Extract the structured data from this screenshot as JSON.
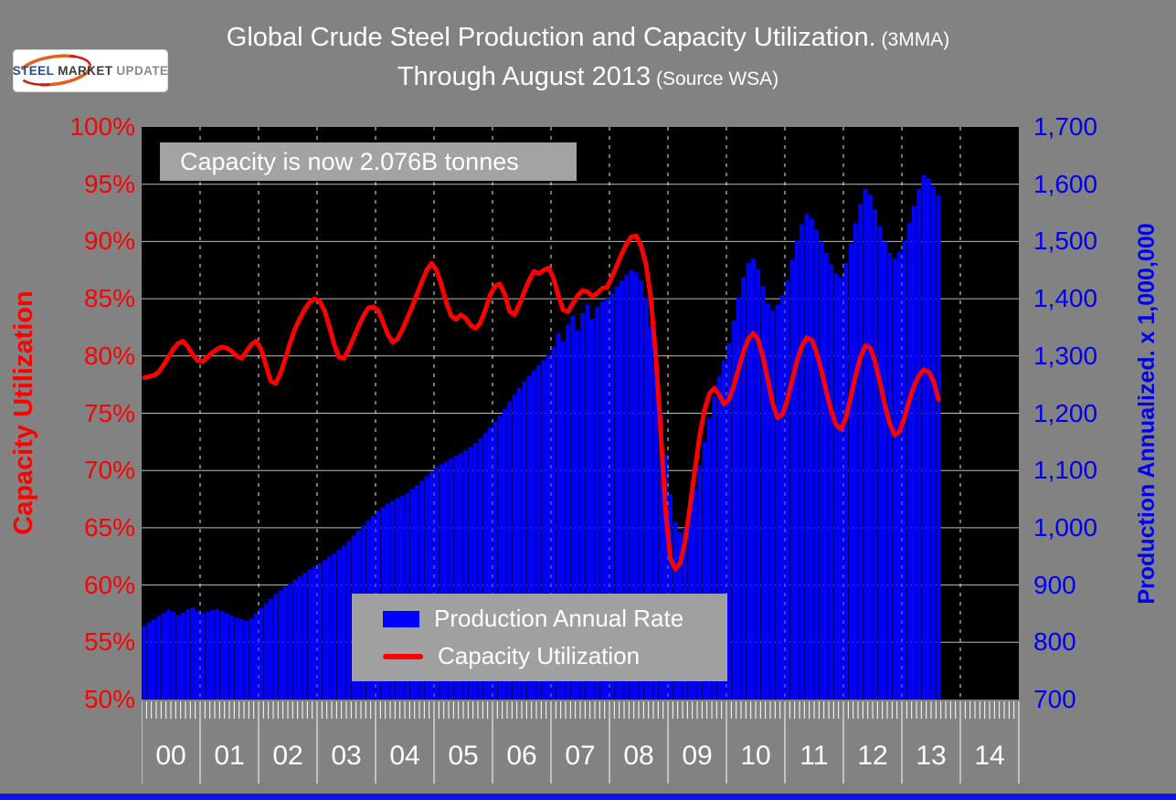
{
  "page": {
    "background": "#828282"
  },
  "logo": {
    "steel": "STEEL",
    "market": "MARKET",
    "update": "UPDATE"
  },
  "title": {
    "line1_main": "Global Crude Steel Production and Capacity Utilization.",
    "line1_small": " (3MMA)",
    "line2_main": "Through August 2013",
    "line2_small": " (Source WSA)"
  },
  "annotation": {
    "text": "Capacity is now 2.076B tonnes"
  },
  "legend": {
    "items": [
      {
        "label": "Production Annual Rate",
        "color": "#0000ff",
        "type": "bar"
      },
      {
        "label": "Capacity Utilization",
        "color": "#ff0000",
        "type": "line"
      }
    ]
  },
  "axes": {
    "left": {
      "title": "Capacity Utilization",
      "color": "#ff0000",
      "ticks": [
        "100%",
        "95%",
        "90%",
        "85%",
        "80%",
        "75%",
        "70%",
        "65%",
        "60%",
        "55%",
        "50%"
      ]
    },
    "right": {
      "title": "Production Annualized. x 1,000,000",
      "color": "#0000f0",
      "ticks": [
        "1,700",
        "1,600",
        "1,500",
        "1,400",
        "1,300",
        "1,200",
        "1,100",
        "1,000",
        "900",
        "800",
        "700"
      ]
    },
    "x": {
      "year_labels": [
        "00",
        "01",
        "02",
        "03",
        "04",
        "05",
        "06",
        "07",
        "08",
        "09",
        "10",
        "11",
        "12",
        "13",
        "14"
      ],
      "months_per_year": 12
    }
  },
  "chart_data": {
    "type": "bar+line",
    "title": "Global Crude Steel Production and Capacity Utilization. (3MMA) Through August 2013 (Source WSA)",
    "x_start": "2000-01",
    "x_end": "2013-08",
    "x_axis_years": [
      "00",
      "01",
      "02",
      "03",
      "04",
      "05",
      "06",
      "07",
      "08",
      "09",
      "10",
      "11",
      "12",
      "13",
      "14"
    ],
    "left_axis": {
      "label": "Capacity Utilization",
      "range": [
        50,
        100
      ],
      "tick_step": 5,
      "format": "percent"
    },
    "right_axis": {
      "label": "Production Annualized. x 1,000,000",
      "range": [
        700,
        1700
      ],
      "tick_step": 100
    },
    "annotation": "Capacity is now 2.076B tonnes",
    "legend_position": "inside-bottom-center",
    "grid": {
      "horizontal": true,
      "vertical_dashed_yearly": true
    },
    "plot_background": "#000000",
    "series": [
      {
        "name": "Production Annual Rate",
        "type": "bar",
        "axis": "right",
        "unit": "million tonnes (annualized)",
        "color": "#0000ff",
        "values": [
          828,
          834,
          840,
          846,
          851,
          856,
          853,
          848,
          852,
          858,
          861,
          855,
          850,
          853,
          856,
          858,
          855,
          850,
          846,
          843,
          840,
          837,
          842,
          850,
          860,
          868,
          876,
          884,
          891,
          897,
          903,
          909,
          915,
          921,
          927,
          932,
          938,
          943,
          949,
          955,
          962,
          969,
          977,
          986,
          995,
          1004,
          1013,
          1021,
          1029,
          1036,
          1042,
          1047,
          1052,
          1056,
          1061,
          1067,
          1074,
          1082,
          1090,
          1098,
          1105,
          1111,
          1116,
          1121,
          1126,
          1130,
          1135,
          1141,
          1148,
          1156,
          1165,
          1175,
          1185,
          1196,
          1208,
          1220,
          1232,
          1244,
          1255,
          1265,
          1275,
          1284,
          1293,
          1302,
          1315,
          1340,
          1325,
          1355,
          1370,
          1345,
          1375,
          1390,
          1365,
          1385,
          1395,
          1400,
          1410,
          1422,
          1432,
          1442,
          1450,
          1446,
          1432,
          1402,
          1352,
          1282,
          1200,
          1128,
          1058,
          1010,
          992,
          1000,
          1030,
          1068,
          1108,
          1150,
          1192,
          1230,
          1264,
          1292,
          1322,
          1362,
          1402,
          1438,
          1462,
          1470,
          1452,
          1422,
          1392,
          1380,
          1390,
          1406,
          1432,
          1468,
          1502,
          1530,
          1548,
          1540,
          1520,
          1500,
          1480,
          1460,
          1444,
          1438,
          1462,
          1496,
          1532,
          1566,
          1592,
          1582,
          1556,
          1526,
          1500,
          1480,
          1470,
          1482,
          1502,
          1532,
          1562,
          1592,
          1616,
          1610,
          1596,
          1580
        ]
      },
      {
        "name": "Capacity Utilization",
        "type": "line",
        "axis": "left",
        "unit": "%",
        "color": "#ff0000",
        "values": [
          78.1,
          78.2,
          78.3,
          78.6,
          79.2,
          79.9,
          80.6,
          81.1,
          81.3,
          80.8,
          80.1,
          79.6,
          79.5,
          79.9,
          80.3,
          80.6,
          80.8,
          80.7,
          80.4,
          80.0,
          79.8,
          80.4,
          81.0,
          81.3,
          80.6,
          79.2,
          77.8,
          77.6,
          78.5,
          79.8,
          81.2,
          82.4,
          83.3,
          84.1,
          84.7,
          85.0,
          84.8,
          84.0,
          82.6,
          81.0,
          79.9,
          79.8,
          80.6,
          81.6,
          82.6,
          83.5,
          84.2,
          84.3,
          84.0,
          83.0,
          81.9,
          81.2,
          81.5,
          82.3,
          83.3,
          84.3,
          85.4,
          86.5,
          87.5,
          88.1,
          87.5,
          86.2,
          84.7,
          83.5,
          83.2,
          83.6,
          83.3,
          82.7,
          82.4,
          82.9,
          84.0,
          85.3,
          86.1,
          86.3,
          85.4,
          83.9,
          83.6,
          84.5,
          85.6,
          86.6,
          87.4,
          87.2,
          87.5,
          87.7,
          86.8,
          85.3,
          84.0,
          83.9,
          84.6,
          85.3,
          85.7,
          85.6,
          85.2,
          85.5,
          85.9,
          86.0,
          86.9,
          87.9,
          88.9,
          89.8,
          90.4,
          90.5,
          89.6,
          88.0,
          85.0,
          80.0,
          73.5,
          66.5,
          62.3,
          61.4,
          61.9,
          63.8,
          66.8,
          70.0,
          73.0,
          75.3,
          76.7,
          77.2,
          76.6,
          75.8,
          76.2,
          77.4,
          78.9,
          80.4,
          81.5,
          82.0,
          81.4,
          79.9,
          77.9,
          75.8,
          74.6,
          74.9,
          76.2,
          77.9,
          79.6,
          80.9,
          81.6,
          81.4,
          80.3,
          78.7,
          76.9,
          75.2,
          74.0,
          73.6,
          74.6,
          76.4,
          78.3,
          79.9,
          80.9,
          80.7,
          79.5,
          77.7,
          75.7,
          74.1,
          73.1,
          73.4,
          74.6,
          76.1,
          77.4,
          78.3,
          78.8,
          78.6,
          77.8,
          76.2
        ]
      }
    ]
  }
}
